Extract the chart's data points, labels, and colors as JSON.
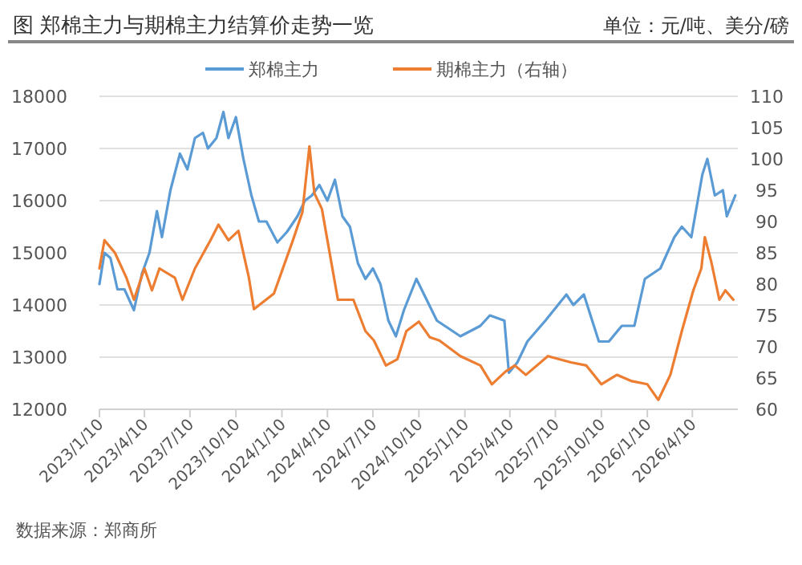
{
  "chart_data": {
    "type": "line",
    "title": "图 郑棉主力与期棉主力结算价走势一览",
    "subtitle": "单位：元/吨、美分/磅",
    "annotations": [
      "数据来源：郑商所"
    ],
    "series": [
      {
        "name": "郑棉主力",
        "color": "#5b9bd5",
        "axis": "y",
        "x": [
          "2023-01-10",
          "2023-01-20",
          "2023-02-01",
          "2023-02-15",
          "2023-03-01",
          "2023-03-20",
          "2023-04-05",
          "2023-04-20",
          "2023-05-05",
          "2023-05-15",
          "2023-06-01",
          "2023-06-20",
          "2023-07-05",
          "2023-07-20",
          "2023-08-05",
          "2023-08-15",
          "2023-09-01",
          "2023-09-15",
          "2023-09-25",
          "2023-10-10",
          "2023-10-25",
          "2023-11-10",
          "2023-11-25",
          "2023-12-10",
          "2024-01-01",
          "2024-01-20",
          "2024-02-10",
          "2024-02-25",
          "2024-03-10",
          "2024-03-25",
          "2024-04-10",
          "2024-04-25",
          "2024-05-10",
          "2024-05-25",
          "2024-06-10",
          "2024-06-25",
          "2024-07-10",
          "2024-07-25",
          "2024-08-10",
          "2024-08-25",
          "2024-09-10",
          "2024-10-05",
          "2024-11-15",
          "2025-01-01",
          "2025-02-10",
          "2025-03-01",
          "2025-03-30",
          "2025-04-08",
          "2025-04-25",
          "2025-05-15",
          "2025-06-20",
          "2025-08-01",
          "2025-08-15",
          "2025-09-05",
          "2025-10-05",
          "2025-10-25",
          "2025-11-20",
          "2025-12-15",
          "2026-01-05",
          "2026-02-05",
          "2026-03-05",
          "2026-03-20",
          "2026-04-08",
          "2026-04-30",
          "2026-05-10",
          "2026-05-25",
          "2026-06-10",
          "2026-06-18",
          "2026-07-05"
        ],
        "values": [
          14400,
          15000,
          14900,
          14300,
          14300,
          13900,
          14600,
          15000,
          15800,
          15300,
          16200,
          16900,
          16600,
          17200,
          17300,
          17000,
          17200,
          17700,
          17200,
          17600,
          16800,
          16100,
          15600,
          15600,
          15200,
          15400,
          15700,
          16000,
          16100,
          16300,
          16000,
          16400,
          15700,
          15500,
          14800,
          14500,
          14700,
          14400,
          13700,
          13400,
          13900,
          14500,
          13700,
          13400,
          13600,
          13800,
          13700,
          12700,
          12900,
          13300,
          13700,
          14200,
          14000,
          14200,
          13300,
          13300,
          13600,
          13600,
          14500,
          14700,
          15300,
          15500,
          15300,
          16500,
          16800,
          16100,
          16200,
          15700,
          16100
        ]
      },
      {
        "name": "期棉主力（右轴）",
        "color": "#ed7d31",
        "axis": "y2",
        "x": [
          "2023-01-10",
          "2023-01-20",
          "2023-02-10",
          "2023-03-05",
          "2023-03-20",
          "2023-04-10",
          "2023-04-25",
          "2023-05-10",
          "2023-06-10",
          "2023-06-25",
          "2023-07-20",
          "2023-08-20",
          "2023-09-05",
          "2023-09-25",
          "2023-10-15",
          "2023-11-05",
          "2023-11-15",
          "2023-12-25",
          "2024-02-01",
          "2024-02-20",
          "2024-03-05",
          "2024-03-15",
          "2024-03-30",
          "2024-04-10",
          "2024-05-01",
          "2024-06-01",
          "2024-06-25",
          "2024-07-12",
          "2024-08-05",
          "2024-08-28",
          "2024-09-15",
          "2024-10-10",
          "2024-11-01",
          "2024-11-20",
          "2025-01-01",
          "2025-02-10",
          "2025-03-05",
          "2025-04-01",
          "2025-04-20",
          "2025-05-12",
          "2025-06-25",
          "2025-08-10",
          "2025-09-10",
          "2025-10-10",
          "2025-11-10",
          "2025-12-10",
          "2026-01-10",
          "2026-02-01",
          "2026-02-25",
          "2026-03-20",
          "2026-04-12",
          "2026-04-28",
          "2026-05-05",
          "2026-05-18",
          "2026-06-03",
          "2026-06-15",
          "2026-07-01"
        ],
        "values": [
          82.5,
          87,
          85,
          81,
          77.5,
          82.5,
          79,
          82.5,
          81,
          77.5,
          82.5,
          87,
          89.5,
          87,
          88.5,
          81,
          76,
          78.5,
          87,
          91.5,
          102,
          94.5,
          92,
          87,
          77.5,
          77.5,
          72.5,
          71,
          67,
          68,
          72.5,
          74,
          71.5,
          71,
          68.5,
          67,
          64,
          66,
          67,
          65.5,
          68.5,
          67.5,
          67,
          64,
          65.5,
          64.5,
          64,
          61.5,
          65.5,
          72.5,
          79,
          82.5,
          87.5,
          83.5,
          77.5,
          79,
          77.5
        ]
      }
    ],
    "xlim": [
      "2023-01-10",
      "2026-07-10"
    ],
    "xticks": [
      {
        "value": "2023-01-10",
        "label": "2023/1/10"
      },
      {
        "value": "2023-04-10",
        "label": "2023/4/10"
      },
      {
        "value": "2023-07-10",
        "label": "2023/7/10"
      },
      {
        "value": "2023-10-10",
        "label": "2023/10/10"
      },
      {
        "value": "2024-01-10",
        "label": "2024/1/10"
      },
      {
        "value": "2024-04-10",
        "label": "2024/4/10"
      },
      {
        "value": "2024-07-10",
        "label": "2024/7/10"
      },
      {
        "value": "2024-10-10",
        "label": "2024/10/10"
      },
      {
        "value": "2025-01-10",
        "label": "2025/1/10"
      },
      {
        "value": "2025-04-10",
        "label": "2025/4/10"
      },
      {
        "value": "2025-07-10",
        "label": "2025/7/10"
      },
      {
        "value": "2025-10-10",
        "label": "2025/10/10"
      },
      {
        "value": "2026-01-10",
        "label": "2026/1/10"
      },
      {
        "value": "2026-04-10",
        "label": "2026/4/10"
      }
    ],
    "ylim": [
      12000,
      18000
    ],
    "yticks": [
      12000,
      13000,
      14000,
      15000,
      16000,
      17000,
      18000
    ],
    "y2lim": [
      60,
      110
    ],
    "y2ticks": [
      60,
      65,
      70,
      75,
      80,
      85,
      90,
      95,
      100,
      105,
      110
    ],
    "grid": "y",
    "legend": "top"
  }
}
